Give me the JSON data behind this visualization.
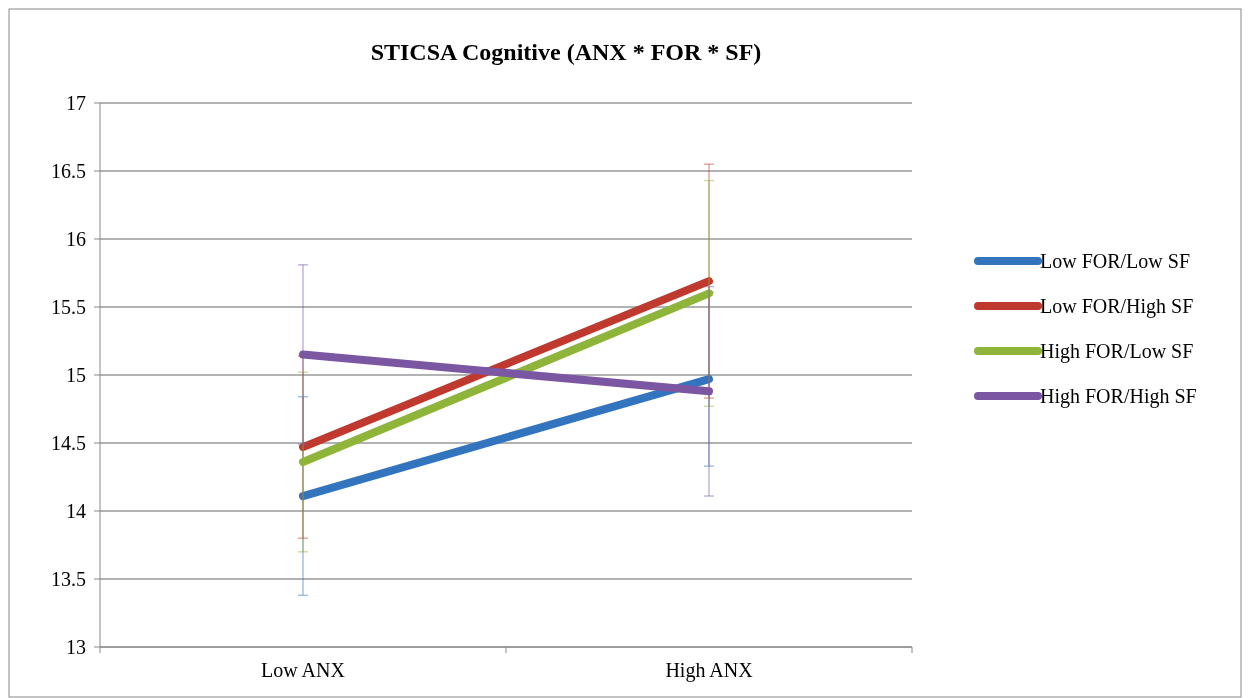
{
  "chart_data": {
    "type": "line",
    "title": "STICSA Cognitive (ANX * FOR * SF)",
    "categories": [
      "Low ANX",
      "High ANX"
    ],
    "ylim": [
      13,
      17
    ],
    "yticks": [
      13,
      13.5,
      14,
      14.5,
      15,
      15.5,
      16,
      16.5,
      17
    ],
    "grid": "y",
    "legend": "right",
    "marker": "none",
    "line_style": "solid",
    "series": [
      {
        "name": "Low FOR/Low SF",
        "color": "#3374bf",
        "values": [
          14.11,
          14.97
        ],
        "errors": [
          0.73,
          0.64
        ]
      },
      {
        "name": "Low FOR/High SF",
        "color": "#c0392f",
        "values": [
          14.47,
          15.69
        ],
        "errors": [
          0.67,
          0.86
        ]
      },
      {
        "name": "High FOR/Low SF",
        "color": "#8fb43a",
        "values": [
          14.36,
          15.6
        ],
        "errors": [
          0.66,
          0.83
        ]
      },
      {
        "name": "High FOR/High SF",
        "color": "#7b57a3",
        "values": [
          15.15,
          14.88
        ],
        "errors": [
          0.66,
          0.77
        ]
      }
    ]
  }
}
